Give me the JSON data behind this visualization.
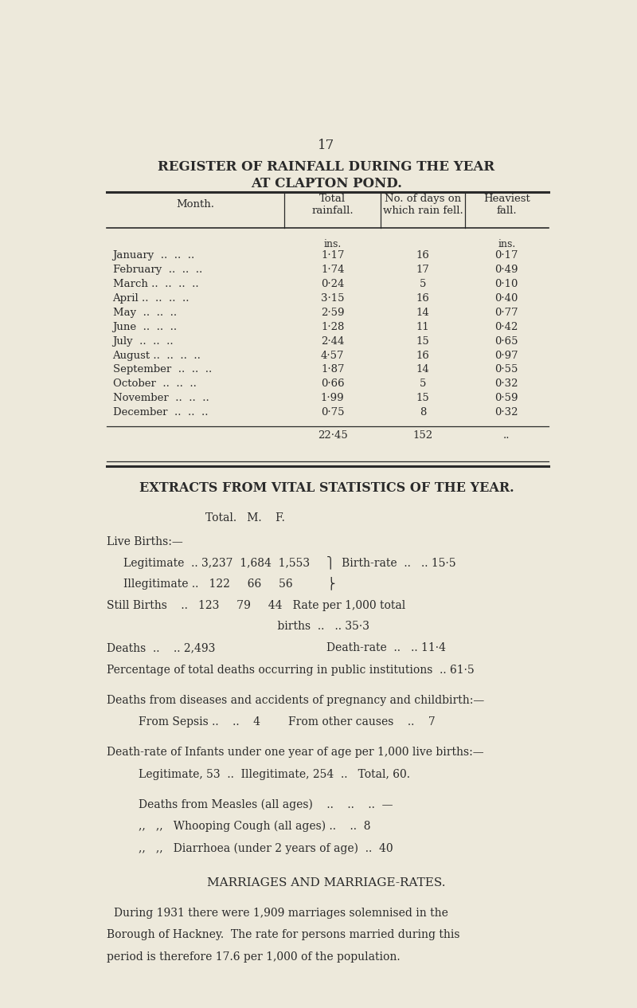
{
  "bg_color": "#ede9db",
  "text_color": "#2a2a2a",
  "page_number": "17",
  "rainfall_title1": "REGISTER OF RAINFALL DURING THE YEAR",
  "rainfall_title2": "AT CLAPTON POND.",
  "rainfall_data": [
    [
      "January",
      "1·17",
      "16",
      "0·17"
    ],
    [
      "February",
      "1·74",
      "17",
      "0·49"
    ],
    [
      "March",
      "0·24",
      "5",
      "0·10"
    ],
    [
      "April",
      "3·15",
      "16",
      "0·40"
    ],
    [
      "May",
      "2·59",
      "14",
      "0·77"
    ],
    [
      "June",
      "1·28",
      "11",
      "0·42"
    ],
    [
      "July",
      "2·44",
      "15",
      "0·65"
    ],
    [
      "August",
      "4·57",
      "16",
      "0·97"
    ],
    [
      "September",
      "1·87",
      "14",
      "0·55"
    ],
    [
      "October",
      "0·66",
      "5",
      "0·32"
    ],
    [
      "November",
      "1·99",
      "15",
      "0·59"
    ],
    [
      "December",
      "0·75",
      "8",
      "0·32"
    ]
  ],
  "rainfall_totals": [
    "22·45",
    "152",
    ".."
  ],
  "vital_title": "EXTRACTS FROM VITAL STATISTICS OF THE YEAR.",
  "marriage_title": "MARRIAGES AND MARRIAGE-RATES.",
  "marriage_line1": "During 1931 there were 1,909 marriages solemnised in the",
  "marriage_line2": "Borough of Hackney.  The rate for persons married during this",
  "marriage_line3": "period is therefore 17.6 per 1,000 of the population."
}
